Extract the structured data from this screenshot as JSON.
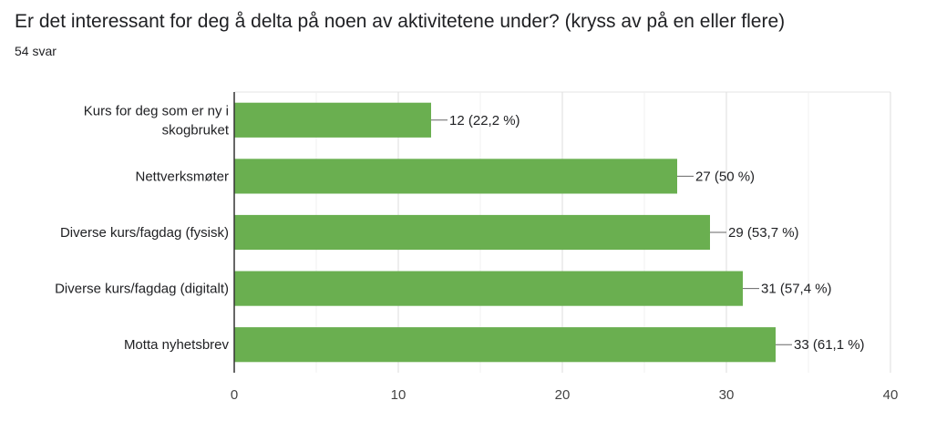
{
  "header": {
    "title": "Er det interessant for deg å delta på noen av aktivitetene under?  (kryss av på en eller flere)",
    "response_count": "54 svar"
  },
  "colors": {
    "bar": "#6aaf50",
    "grid": "#e6e6e6",
    "axis": "#333333",
    "text": "#202124"
  },
  "chart_data": {
    "type": "bar",
    "orientation": "horizontal",
    "categories": [
      "Kurs for deg som er ny i skogbruket",
      "Nettverksmøter",
      "Diverse kurs/fagdag (fysisk)",
      "Diverse kurs/fagdag (digitalt)",
      "Motta nyhetsbrev"
    ],
    "category_label_lines": [
      [
        "Kurs for deg som er ny i",
        "skogbruket"
      ],
      [
        "Nettverksmøter"
      ],
      [
        "Diverse kurs/fagdag (fysisk)"
      ],
      [
        "Diverse kurs/fagdag (digitalt)"
      ],
      [
        "Motta nyhetsbrev"
      ]
    ],
    "values": [
      12,
      27,
      29,
      31,
      33
    ],
    "data_labels": [
      "12 (22,2 %)",
      "27 (50 %)",
      "29 (53,7 %)",
      "31 (57,4 %)",
      "33 (61,1 %)"
    ],
    "xlim": [
      0,
      40
    ],
    "x_ticks": [
      0,
      10,
      20,
      30,
      40
    ],
    "grid": true,
    "legend": "none"
  }
}
